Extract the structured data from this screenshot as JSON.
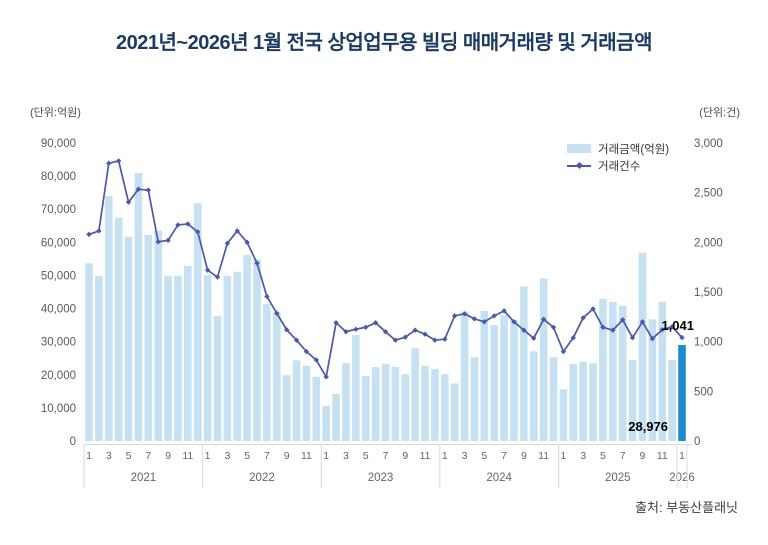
{
  "title": "2021년~2026년 1월 전국 상업업무용 빌딩 매매거래량 및 거래금액",
  "left_unit": "(단위:억원)",
  "right_unit": "(단위:건)",
  "legend": {
    "bar_label": "거래금액(억원)",
    "line_label": "거래건수"
  },
  "source": "출처: 부동산플래닛",
  "annotations": {
    "last_count": "1,041",
    "last_amount": "28,976"
  },
  "colors": {
    "bar": "#c5e1f2",
    "bar_highlight": "#1e8bcd",
    "line": "#4c58ab",
    "title_text": "#1b3b63",
    "axis_text": "#595959",
    "annotation_text": "#000000",
    "separator": "#d9d9d9"
  },
  "chart_data": {
    "type": "combo-bar-line",
    "left_axis": {
      "label": "(단위:억원)",
      "min": 0,
      "max": 90000,
      "step": 10000
    },
    "right_axis": {
      "label": "(단위:건)",
      "min": 0,
      "max": 3000,
      "step": 500
    },
    "grid": false,
    "legend_position": "top-right",
    "years": [
      {
        "year": "2021",
        "label_months": [
          1,
          3,
          5,
          7,
          9,
          11
        ]
      },
      {
        "year": "2022",
        "label_months": [
          1,
          3,
          5,
          7,
          9,
          11
        ]
      },
      {
        "year": "2023",
        "label_months": [
          1,
          3,
          5,
          7,
          9,
          11
        ]
      },
      {
        "year": "2024",
        "label_months": [
          1,
          3,
          5,
          7,
          9,
          11
        ]
      },
      {
        "year": "2025",
        "label_months": [
          1,
          3,
          5,
          7,
          9,
          11
        ]
      },
      {
        "year": "2026",
        "label_months": [
          1
        ]
      }
    ],
    "highlight_index": 60,
    "series": [
      {
        "name": "거래금액(억원)",
        "type": "bar",
        "axis": "left",
        "values": [
          53700,
          49800,
          74000,
          67500,
          61700,
          80900,
          62200,
          63500,
          49800,
          49900,
          52900,
          71800,
          50100,
          37800,
          49900,
          51100,
          56200,
          54900,
          41400,
          38900,
          19900,
          24400,
          22700,
          19400,
          10600,
          14200,
          23500,
          32000,
          19600,
          22300,
          23300,
          22400,
          20200,
          28000,
          22700,
          21700,
          20200,
          17400,
          39100,
          25300,
          39300,
          35000,
          38000,
          36500,
          46700,
          27100,
          49100,
          25300,
          15600,
          23300,
          23900,
          23500,
          42900,
          42000,
          40800,
          24500,
          56900,
          36750,
          42100,
          24500,
          28976
        ]
      },
      {
        "name": "거래건수",
        "type": "line",
        "axis": "right",
        "values": [
          2080,
          2115,
          2795,
          2820,
          2405,
          2535,
          2525,
          2005,
          2020,
          2175,
          2185,
          2105,
          1720,
          1650,
          1990,
          2115,
          2000,
          1790,
          1455,
          1285,
          1120,
          1015,
          900,
          815,
          645,
          1190,
          1100,
          1125,
          1145,
          1190,
          1100,
          1015,
          1045,
          1115,
          1075,
          1015,
          1025,
          1260,
          1280,
          1230,
          1200,
          1260,
          1310,
          1200,
          1115,
          1035,
          1225,
          1145,
          900,
          1040,
          1240,
          1330,
          1145,
          1115,
          1220,
          1040,
          1200,
          1030,
          1120,
          1150,
          1041
        ]
      }
    ]
  }
}
